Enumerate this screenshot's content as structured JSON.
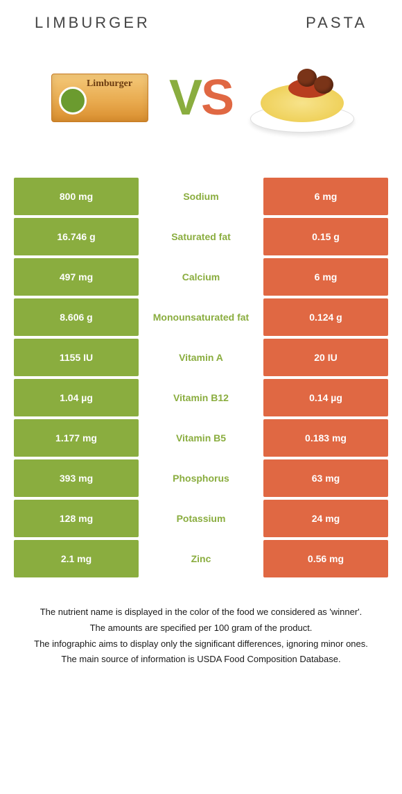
{
  "header": {
    "left": "LIMBURGER",
    "right": "PASTA"
  },
  "vs": {
    "v": "V",
    "s": "S"
  },
  "colors": {
    "green": "#8aad3f",
    "orange": "#e06843"
  },
  "rows": [
    {
      "left": "800 mg",
      "label": "Sodium",
      "right": "6 mg"
    },
    {
      "left": "16.746 g",
      "label": "Saturated fat",
      "right": "0.15 g"
    },
    {
      "left": "497 mg",
      "label": "Calcium",
      "right": "6 mg"
    },
    {
      "left": "8.606 g",
      "label": "Monounsaturated fat",
      "right": "0.124 g"
    },
    {
      "left": "1155 IU",
      "label": "Vitamin A",
      "right": "20 IU"
    },
    {
      "left": "1.04 µg",
      "label": "Vitamin B12",
      "right": "0.14 µg"
    },
    {
      "left": "1.177 mg",
      "label": "Vitamin B5",
      "right": "0.183 mg"
    },
    {
      "left": "393 mg",
      "label": "Phosphorus",
      "right": "63 mg"
    },
    {
      "left": "128 mg",
      "label": "Potassium",
      "right": "24 mg"
    },
    {
      "left": "2.1 mg",
      "label": "Zinc",
      "right": "0.56 mg"
    }
  ],
  "footer": {
    "l1": "The nutrient name is displayed in the color of the food we considered as 'winner'.",
    "l2": "The amounts are specified per 100 gram of the product.",
    "l3": "The infographic aims to display only the significant differences, ignoring minor ones.",
    "l4": "The main source of information is USDA Food Composition Database."
  }
}
